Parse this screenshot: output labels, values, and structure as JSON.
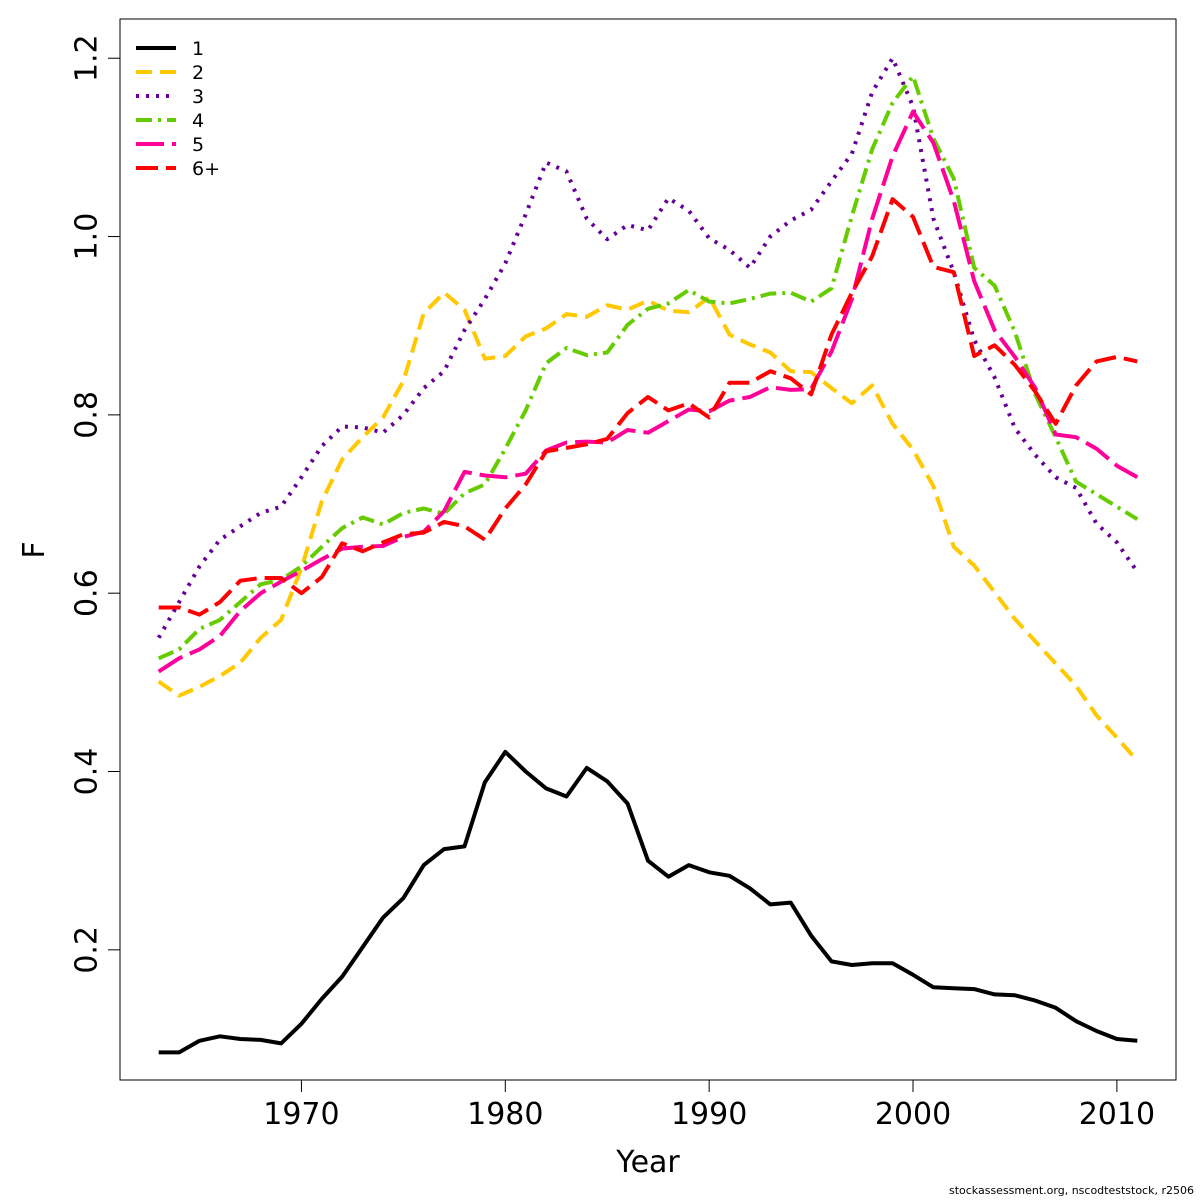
{
  "chart_data": {
    "type": "line",
    "xlabel": "Year",
    "ylabel": "F",
    "xlim": [
      1961.1,
      2012.9
    ],
    "ylim": [
      0.054,
      1.244
    ],
    "xticks": [
      1970,
      1980,
      1990,
      2000,
      2010
    ],
    "yticks": [
      0.2,
      0.4,
      0.6,
      0.8,
      1.0,
      1.2
    ],
    "ytick_labels": [
      "0.2",
      "0.4",
      "0.6",
      "0.8",
      "1.0",
      "1.2"
    ],
    "legend_placement": "top-left",
    "grid": false,
    "footer": "stockassessment.org, nscodteststock, r2506",
    "x": [
      1963,
      1964,
      1965,
      1966,
      1967,
      1968,
      1969,
      1970,
      1971,
      1972,
      1973,
      1974,
      1975,
      1976,
      1977,
      1978,
      1979,
      1980,
      1981,
      1982,
      1983,
      1984,
      1985,
      1986,
      1987,
      1988,
      1989,
      1990,
      1991,
      1992,
      1993,
      1994,
      1995,
      1996,
      1997,
      1998,
      1999,
      2000,
      2001,
      2002,
      2003,
      2004,
      2005,
      2006,
      2007,
      2008,
      2009,
      2010,
      2011
    ],
    "series": [
      {
        "name": "1",
        "color": "#000000",
        "dash": "",
        "values": [
          0.085,
          0.085,
          0.098,
          0.103,
          0.1,
          0.099,
          0.095,
          0.117,
          0.145,
          0.17,
          0.203,
          0.236,
          0.258,
          0.295,
          0.313,
          0.316,
          0.388,
          0.422,
          0.4,
          0.381,
          0.372,
          0.404,
          0.389,
          0.364,
          0.3,
          0.282,
          0.295,
          0.287,
          0.283,
          0.269,
          0.251,
          0.253,
          0.216,
          0.187,
          0.183,
          0.185,
          0.185,
          0.172,
          0.158,
          0.157,
          0.156,
          0.15,
          0.149,
          0.143,
          0.135,
          0.12,
          0.109,
          0.1,
          0.098
        ]
      },
      {
        "name": "2",
        "color": "#FFC800",
        "dash": "16,8",
        "values": [
          0.501,
          0.485,
          0.495,
          0.507,
          0.522,
          0.55,
          0.57,
          0.628,
          0.703,
          0.75,
          0.775,
          0.797,
          0.838,
          0.914,
          0.937,
          0.918,
          0.863,
          0.866,
          0.888,
          0.897,
          0.913,
          0.91,
          0.923,
          0.918,
          0.928,
          0.917,
          0.915,
          0.932,
          0.89,
          0.879,
          0.87,
          0.849,
          0.848,
          0.83,
          0.813,
          0.833,
          0.79,
          0.761,
          0.72,
          0.652,
          0.631,
          0.601,
          0.571,
          0.546,
          0.521,
          0.496,
          0.463,
          0.438,
          0.412
        ]
      },
      {
        "name": "3",
        "color": "#660099",
        "dash": "3,7",
        "values": [
          0.55,
          0.59,
          0.63,
          0.66,
          0.675,
          0.69,
          0.697,
          0.73,
          0.765,
          0.787,
          0.786,
          0.78,
          0.8,
          0.83,
          0.849,
          0.895,
          0.93,
          0.97,
          1.025,
          1.083,
          1.073,
          1.02,
          0.997,
          1.013,
          1.007,
          1.043,
          1.029,
          0.998,
          0.985,
          0.965,
          1.0,
          1.018,
          1.03,
          1.062,
          1.093,
          1.162,
          1.2,
          1.146,
          1.02,
          0.96,
          0.884,
          0.842,
          0.785,
          0.755,
          0.73,
          0.718,
          0.678,
          0.657,
          0.624
        ]
      },
      {
        "name": "4",
        "color": "#66CC00",
        "dash": "16,6,3,6",
        "values": [
          0.527,
          0.537,
          0.56,
          0.57,
          0.59,
          0.61,
          0.615,
          0.63,
          0.652,
          0.673,
          0.685,
          0.677,
          0.69,
          0.695,
          0.689,
          0.712,
          0.722,
          0.762,
          0.805,
          0.858,
          0.875,
          0.867,
          0.87,
          0.901,
          0.919,
          0.925,
          0.94,
          0.927,
          0.925,
          0.93,
          0.936,
          0.937,
          0.927,
          0.942,
          1.023,
          1.098,
          1.15,
          1.18,
          1.11,
          1.065,
          0.965,
          0.945,
          0.893,
          0.823,
          0.775,
          0.725,
          0.711,
          0.697,
          0.683
        ]
      },
      {
        "name": "5",
        "color": "#FF0099",
        "dash": "28,8",
        "values": [
          0.512,
          0.527,
          0.537,
          0.552,
          0.58,
          0.6,
          0.613,
          0.625,
          0.638,
          0.65,
          0.652,
          0.653,
          0.663,
          0.669,
          0.692,
          0.736,
          0.732,
          0.73,
          0.734,
          0.76,
          0.769,
          0.77,
          0.769,
          0.783,
          0.78,
          0.793,
          0.806,
          0.804,
          0.816,
          0.82,
          0.831,
          0.828,
          0.829,
          0.871,
          0.93,
          1.02,
          1.09,
          1.14,
          1.105,
          1.04,
          0.95,
          0.895,
          0.865,
          0.83,
          0.778,
          0.775,
          0.762,
          0.743,
          0.73
        ]
      },
      {
        "name": "6+",
        "color": "#FF0000",
        "dash": "22,8",
        "values": [
          0.584,
          0.584,
          0.576,
          0.59,
          0.614,
          0.617,
          0.617,
          0.6,
          0.618,
          0.656,
          0.647,
          0.657,
          0.666,
          0.668,
          0.68,
          0.675,
          0.66,
          0.695,
          0.722,
          0.759,
          0.763,
          0.767,
          0.773,
          0.802,
          0.82,
          0.805,
          0.813,
          0.797,
          0.836,
          0.836,
          0.849,
          0.841,
          0.823,
          0.89,
          0.937,
          0.978,
          1.042,
          1.022,
          0.966,
          0.96,
          0.866,
          0.878,
          0.856,
          0.826,
          0.79,
          0.833,
          0.86,
          0.865,
          0.86
        ]
      }
    ]
  }
}
